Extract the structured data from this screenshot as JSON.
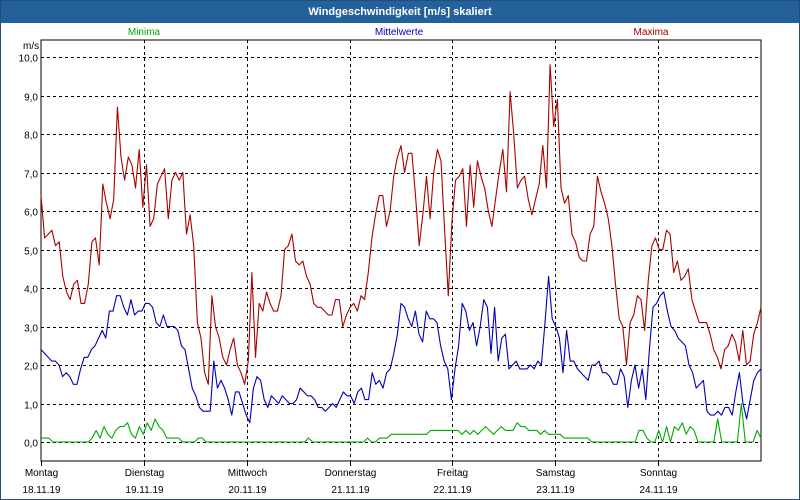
{
  "window": {
    "title": "Windgeschwindigkeit [m/s] skaliert"
  },
  "chart_data": {
    "type": "line",
    "title": "Windgeschwindigkeit [m/s] skaliert",
    "ylabel": "m/s",
    "ylim": [
      0,
      10.5
    ],
    "yticks": [
      "0,0",
      "1,0",
      "2,0",
      "3,0",
      "4,0",
      "5,0",
      "6,0",
      "7,0",
      "8,0",
      "9,0",
      "10,0"
    ],
    "days": [
      {
        "weekday": "Montag",
        "date": "18.11.19"
      },
      {
        "weekday": "Dienstag",
        "date": "19.11.19"
      },
      {
        "weekday": "Mittwoch",
        "date": "20.11.19"
      },
      {
        "weekday": "Donnerstag",
        "date": "21.11.19"
      },
      {
        "weekday": "Freitag",
        "date": "22.11.19"
      },
      {
        "weekday": "Samstag",
        "date": "23.11.19"
      },
      {
        "weekday": "Sonntag",
        "date": "24.11.19"
      }
    ],
    "grid": true,
    "legend_position": "top",
    "series": [
      {
        "name": "Minima",
        "color": "#00aa00",
        "values": [
          0.1,
          0.1,
          0.1,
          0.0,
          0.0,
          0.0,
          0.0,
          0.0,
          0.0,
          0.0,
          0.0,
          0.0,
          0.0,
          0.1,
          0.3,
          0.1,
          0.4,
          0.2,
          0.1,
          0.3,
          0.4,
          0.4,
          0.5,
          0.2,
          0.1,
          0.4,
          0.2,
          0.5,
          0.3,
          0.6,
          0.4,
          0.3,
          0.1,
          0.1,
          0.1,
          0.1,
          0.0,
          0.0,
          0.0,
          0.0,
          0.1,
          0.1,
          0.0,
          0.0,
          0.0,
          0.0,
          0.0,
          0.0,
          0.0,
          0.0,
          0.0,
          0.0,
          0.0,
          0.0,
          0.0,
          0.0,
          0.0,
          0.0,
          0.0,
          0.0,
          0.0,
          0.0,
          0.0,
          0.0,
          0.0,
          0.0,
          0.0,
          0.0,
          0.1,
          0.0,
          0.0,
          0.0,
          0.0,
          0.0,
          0.0,
          0.0,
          0.0,
          0.0,
          0.0,
          0.0,
          0.0,
          0.0,
          0.0,
          0.1,
          0.0,
          0.0,
          0.1,
          0.1,
          0.1,
          0.2,
          0.2,
          0.2,
          0.2,
          0.2,
          0.2,
          0.2,
          0.2,
          0.2,
          0.2,
          0.3,
          0.3,
          0.3,
          0.3,
          0.3,
          0.3,
          0.3,
          0.3,
          0.2,
          0.3,
          0.2,
          0.3,
          0.2,
          0.3,
          0.4,
          0.3,
          0.2,
          0.3,
          0.4,
          0.3,
          0.3,
          0.3,
          0.5,
          0.4,
          0.4,
          0.3,
          0.3,
          0.3,
          0.2,
          0.3,
          0.2,
          0.2,
          0.2,
          0.2,
          0.1,
          0.1,
          0.1,
          0.1,
          0.1,
          0.1,
          0.1,
          0.0,
          0.0,
          0.0,
          0.0,
          0.0,
          0.0,
          0.0,
          0.0,
          0.0,
          0.0,
          0.0,
          0.0,
          0.3,
          0.3,
          0.1,
          0.0,
          0.0,
          0.3,
          0.0,
          0.4,
          0.0,
          0.4,
          0.3,
          0.5,
          0.2,
          0.4,
          0.3,
          0.0,
          0.0,
          0.0,
          0.0,
          0.0,
          0.6,
          0.0,
          0.0,
          0.0,
          0.0,
          0.0,
          1.0,
          0.0,
          0.0,
          0.0,
          0.3,
          0.1
        ]
      },
      {
        "name": "Mittelwerte",
        "color": "#0000bb",
        "values": [
          2.4,
          2.3,
          2.2,
          2.1,
          2.1,
          2.0,
          1.7,
          1.8,
          1.7,
          1.5,
          1.5,
          1.9,
          2.2,
          2.2,
          2.4,
          2.5,
          2.7,
          2.9,
          2.7,
          3.4,
          3.4,
          3.8,
          3.8,
          3.5,
          3.3,
          3.7,
          3.3,
          3.4,
          3.4,
          3.6,
          3.6,
          3.5,
          3.1,
          3.0,
          3.3,
          3.0,
          3.0,
          3.0,
          2.9,
          2.5,
          2.4,
          1.9,
          1.4,
          1.2,
          0.9,
          0.8,
          0.8,
          0.8,
          2.1,
          1.4,
          1.6,
          1.4,
          1.1,
          0.7,
          1.3,
          1.3,
          1.0,
          0.7,
          0.5,
          1.4,
          1.7,
          1.6,
          1.1,
          0.9,
          1.2,
          1.1,
          1.0,
          1.2,
          1.1,
          1.0,
          1.0,
          1.1,
          1.4,
          1.3,
          1.2,
          1.2,
          1.1,
          0.9,
          0.9,
          0.8,
          0.9,
          1.0,
          0.9,
          1.1,
          1.3,
          1.2,
          1.2,
          1.0,
          1.3,
          1.4,
          1.1,
          1.1,
          1.8,
          1.5,
          1.6,
          1.4,
          1.8,
          1.9,
          2.3,
          2.8,
          3.6,
          3.5,
          3.2,
          3.0,
          3.4,
          2.8,
          2.6,
          3.4,
          3.2,
          3.2,
          3.1,
          2.5,
          2.1,
          1.9,
          1.1,
          1.9,
          2.5,
          3.6,
          3.4,
          2.9,
          3.1,
          2.5,
          3.0,
          3.7,
          3.5,
          2.3,
          3.5,
          2.1,
          2.7,
          2.8,
          1.9,
          2.0,
          2.1,
          1.9,
          1.9,
          1.9,
          2.0,
          1.9,
          2.1,
          2.0,
          3.1,
          4.3,
          3.2,
          3.0,
          2.7,
          1.8,
          2.9,
          2.1,
          2.1,
          1.9,
          1.8,
          1.7,
          1.6,
          2.0,
          2.0,
          2.1,
          1.8,
          1.8,
          1.7,
          1.5,
          1.5,
          1.9,
          1.7,
          0.9,
          1.6,
          2.0,
          1.4,
          1.9,
          1.1,
          2.4,
          3.5,
          3.6,
          3.8,
          3.9,
          3.4,
          3.0,
          2.9,
          2.7,
          2.6,
          2.5,
          2.0,
          1.8,
          1.4,
          1.5,
          1.6,
          0.8,
          0.7,
          0.7,
          0.8,
          0.7,
          0.9,
          0.9,
          0.7,
          1.3,
          1.8,
          1.0,
          0.6,
          1.1,
          1.6,
          1.8,
          1.9
        ]
      },
      {
        "name": "Maxima",
        "color": "#aa0000",
        "values": [
          6.4,
          5.3,
          5.4,
          5.5,
          5.1,
          5.2,
          4.3,
          3.9,
          3.7,
          4.1,
          4.2,
          3.6,
          3.6,
          4.1,
          5.2,
          5.3,
          4.6,
          6.7,
          6.2,
          5.8,
          6.3,
          8.7,
          7.4,
          6.8,
          7.4,
          7.2,
          6.6,
          7.6,
          6.1,
          7.2,
          5.6,
          5.8,
          6.7,
          6.9,
          7.1,
          5.8,
          6.8,
          7.0,
          6.8,
          7.0,
          5.4,
          5.9,
          5.1,
          3.1,
          2.7,
          1.8,
          1.5,
          3.8,
          3.0,
          2.7,
          2.2,
          2.0,
          2.4,
          2.7,
          2.0,
          1.8,
          1.5,
          2.1,
          4.4,
          2.2,
          3.6,
          3.4,
          3.9,
          3.6,
          3.4,
          3.4,
          3.8,
          5.0,
          5.1,
          5.4,
          4.7,
          4.6,
          4.7,
          4.3,
          4.1,
          3.6,
          3.5,
          3.5,
          3.4,
          3.3,
          3.3,
          3.7,
          3.7,
          3.0,
          3.3,
          3.5,
          3.6,
          3.4,
          3.8,
          3.7,
          4.4,
          5.3,
          5.9,
          6.4,
          6.4,
          5.6,
          6.0,
          6.9,
          7.4,
          7.7,
          7.0,
          7.5,
          7.5,
          6.4,
          5.1,
          5.9,
          6.9,
          5.8,
          7.0,
          7.6,
          7.3,
          5.5,
          3.8,
          5.7,
          6.8,
          6.9,
          7.1,
          5.6,
          7.2,
          6.1,
          7.3,
          6.9,
          6.6,
          6.0,
          5.6,
          6.3,
          7.0,
          7.6,
          6.5,
          9.1,
          8.0,
          6.6,
          6.8,
          6.9,
          6.3,
          5.9,
          6.3,
          6.7,
          7.7,
          6.6,
          9.8,
          8.2,
          8.9,
          6.6,
          6.2,
          6.4,
          5.4,
          5.2,
          4.8,
          4.7,
          4.7,
          5.4,
          5.6,
          6.9,
          6.5,
          6.2,
          5.8,
          5.1,
          4.1,
          3.2,
          3.0,
          2.0,
          3.1,
          3.3,
          3.8,
          3.7,
          2.9,
          4.2,
          5.1,
          5.3,
          5.0,
          5.0,
          5.5,
          5.4,
          4.4,
          4.7,
          4.2,
          4.3,
          4.5,
          3.7,
          3.4,
          3.1,
          3.1,
          3.1,
          2.8,
          2.4,
          2.2,
          1.9,
          2.4,
          2.5,
          2.8,
          2.6,
          2.1,
          2.9,
          2.0,
          2.1,
          2.8,
          3.1,
          3.5
        ]
      }
    ]
  }
}
